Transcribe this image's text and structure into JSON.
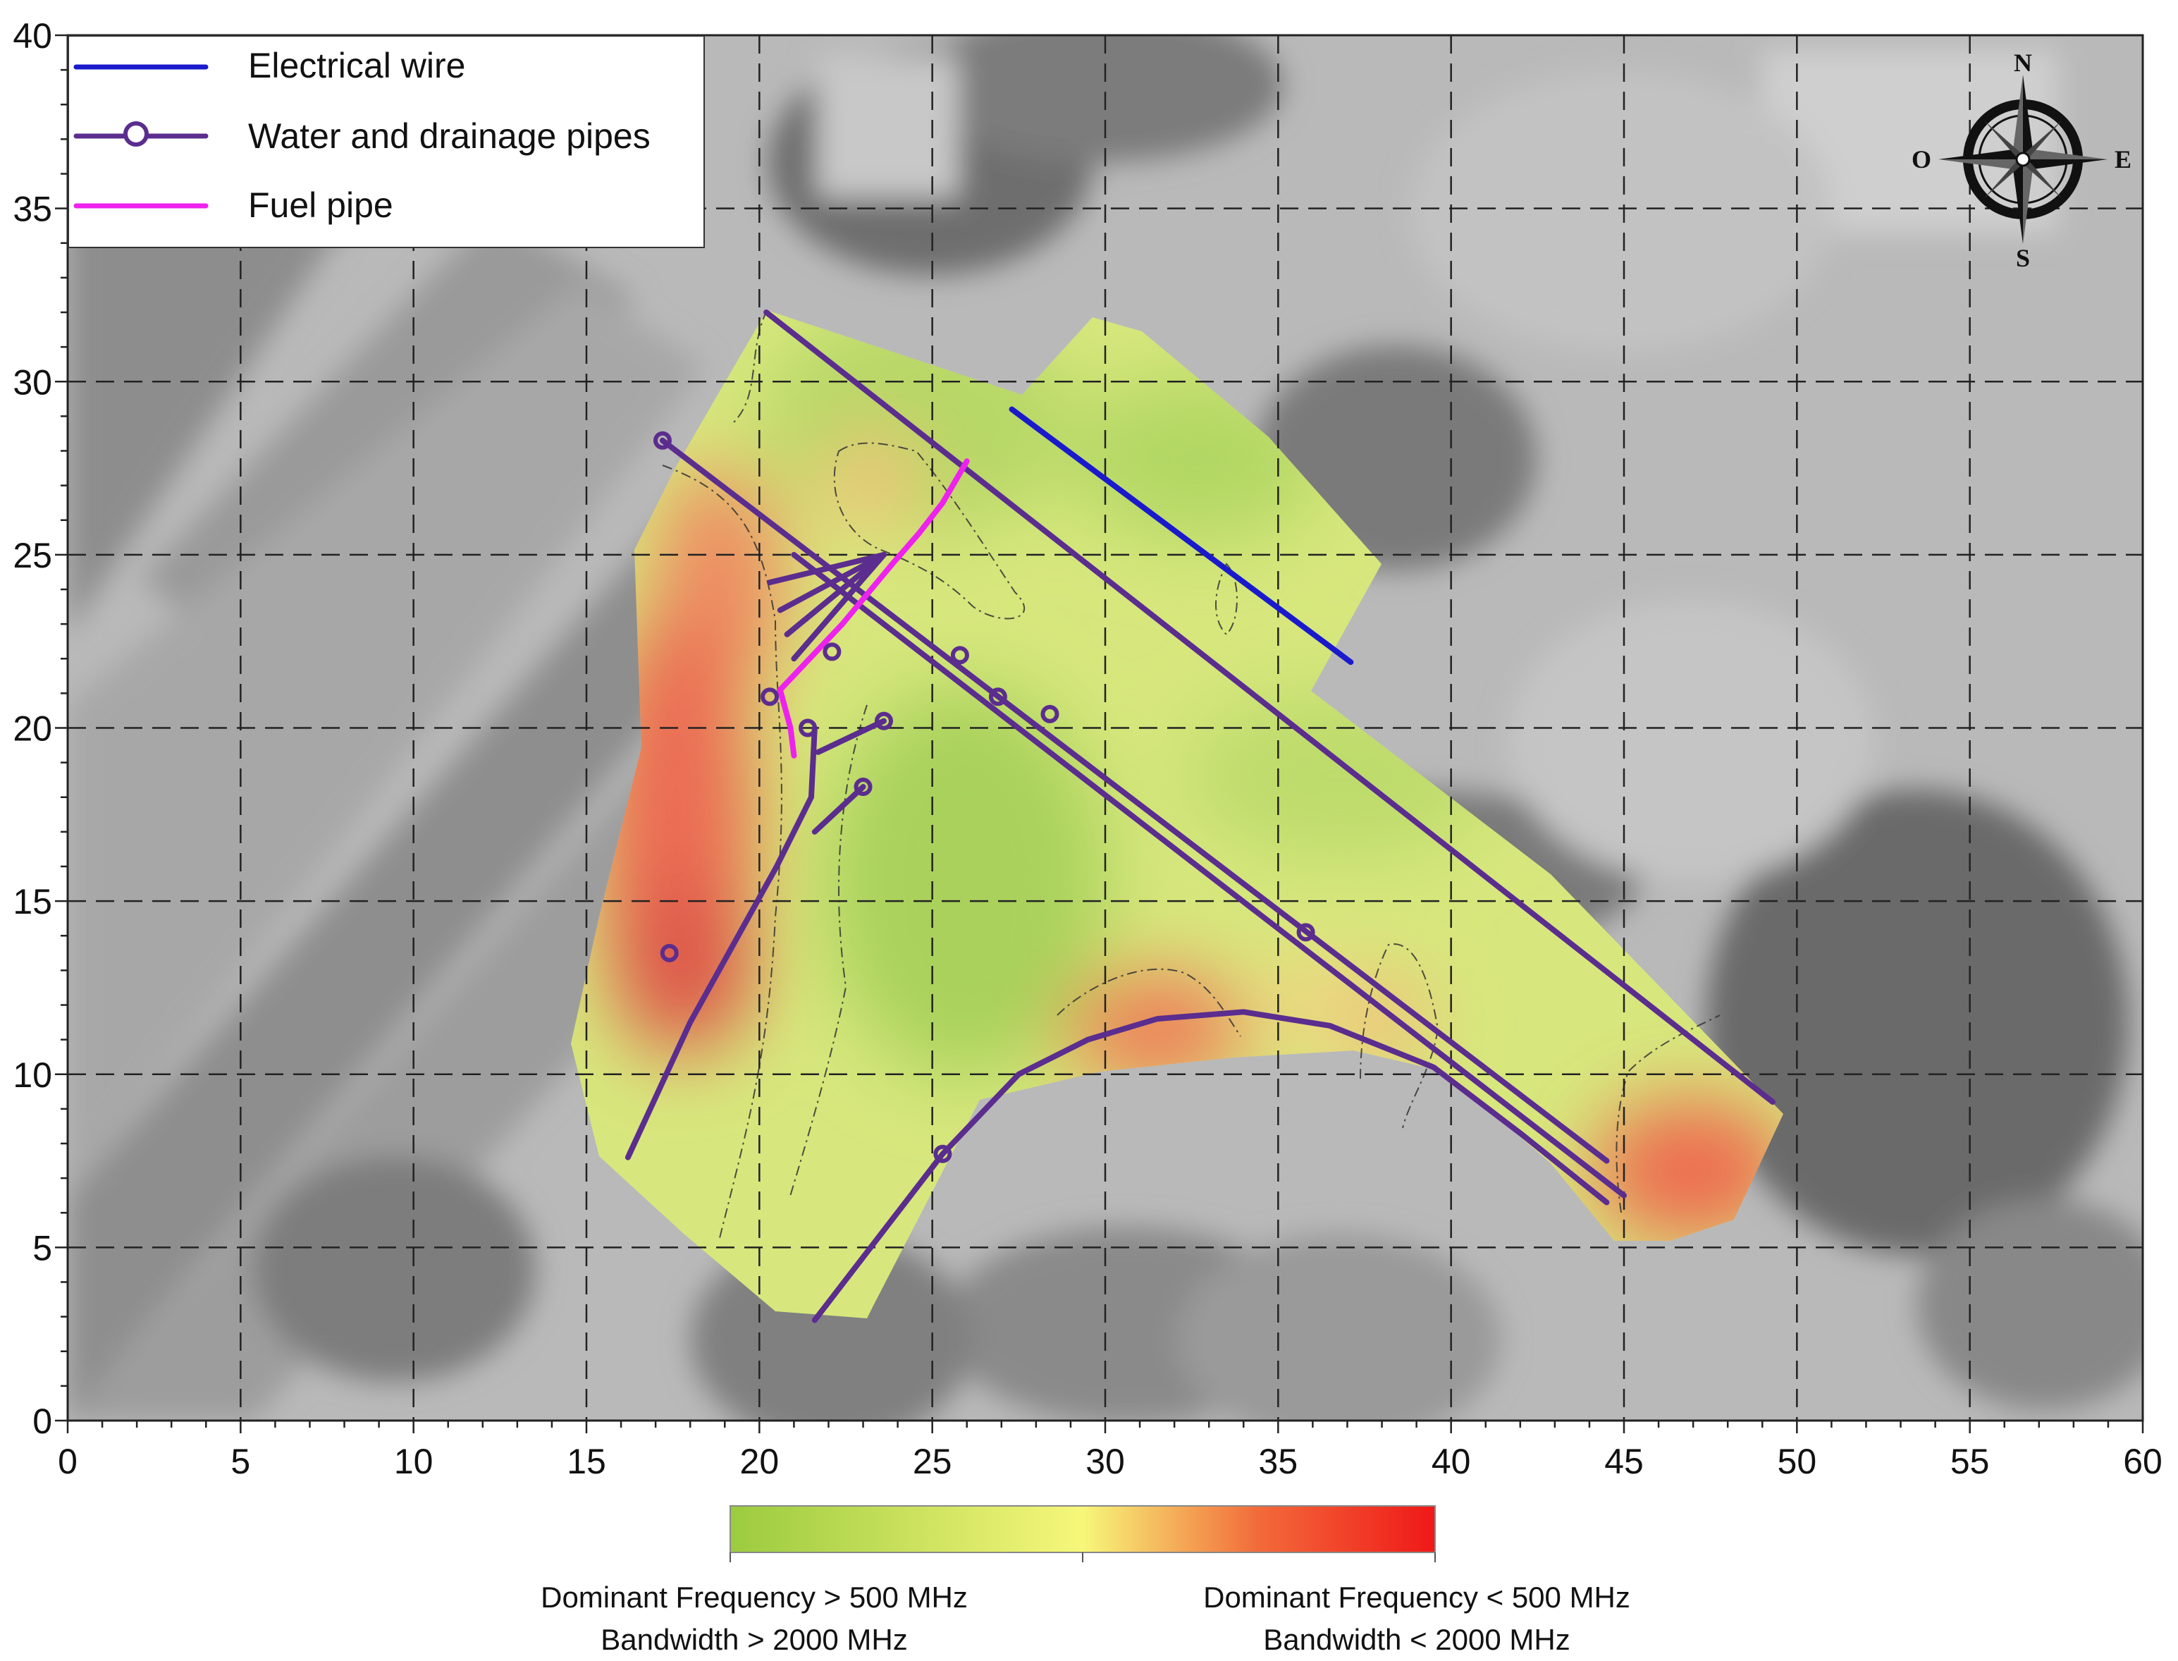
{
  "map": {
    "x_ticks": [
      "0",
      "5",
      "10",
      "15",
      "20",
      "25",
      "30",
      "35",
      "40",
      "45",
      "50",
      "55",
      "60"
    ],
    "y_ticks": [
      "0",
      "5",
      "10",
      "15",
      "20",
      "25",
      "30",
      "35",
      "40"
    ],
    "x_range": [
      0,
      60
    ],
    "y_range": [
      0,
      40
    ],
    "grid": "dashed"
  },
  "legend": {
    "items": [
      {
        "label": "Electrical wire",
        "color": "#1a1acc",
        "marker": "line"
      },
      {
        "label": "Water and drainage pipes",
        "color": "#5b2d8e",
        "marker": "line-circle"
      },
      {
        "label": "Fuel pipe",
        "color": "#ee22ee",
        "marker": "line"
      }
    ]
  },
  "compass": {
    "north": "N",
    "east": "E",
    "south": "S",
    "west": "O"
  },
  "colorbar": {
    "colors": [
      "#9bcb3f",
      "#f7f77a",
      "#f26a3a",
      "#f01818"
    ],
    "left_label_line1": "Dominant Frequency > 500 MHz",
    "left_label_line2": "Bandwidth > 2000 MHz",
    "right_label_line1": "Dominant Frequency < 500 MHz",
    "right_label_line2": "Bandwidth < 2000 MHz"
  },
  "features": {
    "electrical_wire": [
      [
        27.3,
        29.2
      ],
      [
        37.1,
        21.9
      ]
    ],
    "fuel_pipe": [
      [
        26.0,
        27.7
      ],
      [
        25.3,
        26.5
      ],
      [
        24.6,
        25.6
      ],
      [
        23.9,
        24.8
      ],
      [
        22.4,
        23.0
      ],
      [
        20.6,
        21.1
      ],
      [
        20.9,
        20.0
      ],
      [
        21.0,
        19.2
      ]
    ],
    "water_pipes": [
      [
        [
          20.2,
          32.0
        ],
        [
          49.3,
          9.2
        ]
      ],
      [
        [
          17.2,
          28.3
        ],
        [
          44.5,
          7.5
        ]
      ],
      [
        [
          21.0,
          25.0
        ],
        [
          45.0,
          6.5
        ]
      ],
      [
        [
          16.2,
          7.6
        ],
        [
          18.0,
          11.5
        ],
        [
          20.5,
          16.0
        ],
        [
          21.5,
          18.0
        ],
        [
          21.6,
          20.0
        ]
      ],
      [
        [
          21.6,
          17.0
        ],
        [
          23.0,
          18.3
        ]
      ],
      [
        [
          21.7,
          19.3
        ],
        [
          23.6,
          20.2
        ]
      ],
      [
        [
          21.6,
          2.9
        ],
        [
          25.3,
          7.7
        ],
        [
          27.5,
          10.0
        ],
        [
          29.5,
          11.0
        ],
        [
          31.5,
          11.6
        ],
        [
          34.0,
          11.8
        ],
        [
          36.5,
          11.4
        ],
        [
          39.5,
          10.2
        ],
        [
          42.0,
          8.3
        ],
        [
          44.5,
          6.3
        ]
      ]
    ],
    "water_markers": [
      [
        17.2,
        28.3
      ],
      [
        17.4,
        13.5
      ],
      [
        20.3,
        20.9
      ],
      [
        21.4,
        20.0
      ],
      [
        22.1,
        22.2
      ],
      [
        23.6,
        20.2
      ],
      [
        23.0,
        18.3
      ],
      [
        25.8,
        22.1
      ],
      [
        26.9,
        20.9
      ],
      [
        28.4,
        20.4
      ],
      [
        35.8,
        14.1
      ],
      [
        25.3,
        7.7
      ]
    ],
    "fan_lines": [
      [
        [
          20.3,
          24.2
        ],
        [
          23.6,
          25.0
        ]
      ],
      [
        [
          20.6,
          23.4
        ],
        [
          23.6,
          25.0
        ]
      ],
      [
        [
          20.8,
          22.7
        ],
        [
          23.6,
          25.0
        ]
      ],
      [
        [
          21.0,
          22.0
        ],
        [
          23.6,
          25.0
        ]
      ]
    ]
  }
}
